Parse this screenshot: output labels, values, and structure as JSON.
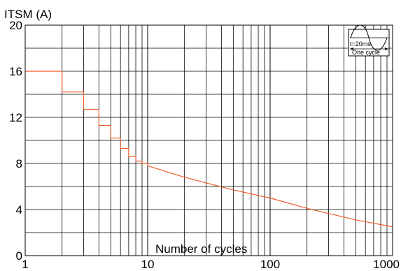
{
  "chart_data": {
    "type": "line",
    "title": "",
    "ylabel": "ITSM (A)",
    "xlabel": "Number of cycles",
    "x_scale": "log",
    "xlim": [
      1,
      1000
    ],
    "ylim": [
      0,
      20
    ],
    "x_ticks": [
      1,
      10,
      100,
      1000
    ],
    "x_tick_labels": [
      "1",
      "10",
      "100",
      "1000"
    ],
    "y_ticks": [
      0,
      4,
      8,
      12,
      16,
      20
    ],
    "y_tick_labels": [
      "0",
      "4",
      "8",
      "12",
      "16",
      "20"
    ],
    "grid": true,
    "line_color": "#f05a28",
    "series": [
      {
        "name": "",
        "step": true,
        "x": [
          1,
          2,
          3,
          4,
          5,
          6,
          7,
          8,
          9,
          10,
          20,
          50,
          100,
          200,
          500,
          1000
        ],
        "y": [
          16,
          14.2,
          12.7,
          11.3,
          10.2,
          9.3,
          8.6,
          8.2,
          8.0,
          7.8,
          6.8,
          5.7,
          5.0,
          4.1,
          3.1,
          2.5
        ]
      }
    ],
    "inset": {
      "label_top": "t=20ms",
      "label_bottom": "One  cycle"
    }
  }
}
